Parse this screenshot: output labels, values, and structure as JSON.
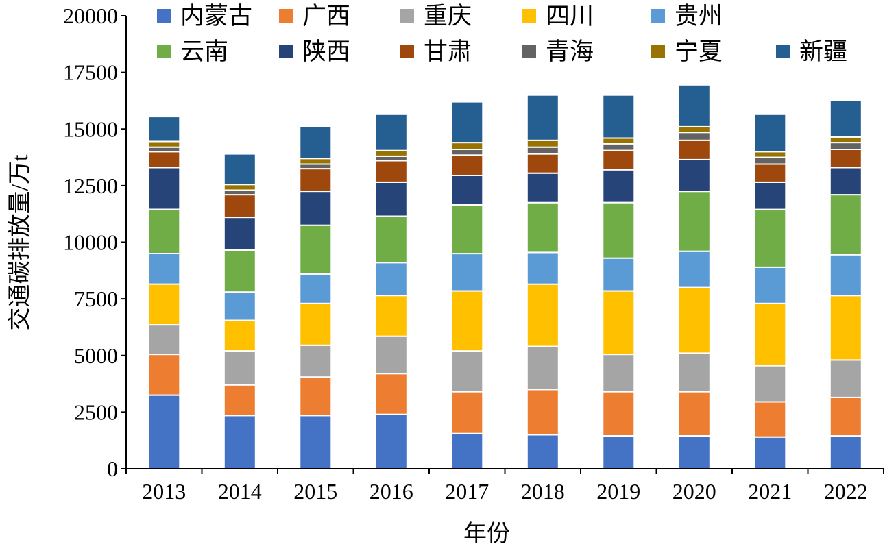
{
  "chart_data": {
    "type": "bar",
    "stacked": true,
    "title": "",
    "xlabel": "年份",
    "ylabel": "交通碳排放量/万t",
    "ylim": [
      0,
      20000
    ],
    "yticks": [
      0,
      2500,
      5000,
      7500,
      10000,
      12500,
      15000,
      17500,
      20000
    ],
    "grid": false,
    "legend_position": "top",
    "categories": [
      "2013",
      "2014",
      "2015",
      "2016",
      "2017",
      "2018",
      "2019",
      "2020",
      "2021",
      "2022"
    ],
    "series": [
      {
        "name": "内蒙古",
        "color": "#4472C4",
        "values": [
          3250,
          2350,
          2350,
          2400,
          1550,
          1500,
          1450,
          1450,
          1400,
          1450
        ]
      },
      {
        "name": "广西",
        "color": "#ED7D31",
        "values": [
          1800,
          1350,
          1700,
          1800,
          1850,
          2000,
          1950,
          1950,
          1550,
          1700
        ]
      },
      {
        "name": "重庆",
        "color": "#A5A5A5",
        "values": [
          1300,
          1500,
          1400,
          1650,
          1800,
          1900,
          1650,
          1700,
          1600,
          1650
        ]
      },
      {
        "name": "四川",
        "color": "#FFC000",
        "values": [
          1800,
          1350,
          1850,
          1800,
          2650,
          2750,
          2800,
          2900,
          2750,
          2850
        ]
      },
      {
        "name": "贵州",
        "color": "#5B9BD5",
        "values": [
          1350,
          1250,
          1300,
          1450,
          1650,
          1400,
          1450,
          1600,
          1600,
          1800
        ]
      },
      {
        "name": "云南",
        "color": "#70AD47",
        "values": [
          1950,
          1850,
          2150,
          2050,
          2150,
          2200,
          2450,
          2650,
          2550,
          2650
        ]
      },
      {
        "name": "陕西",
        "color": "#264478",
        "values": [
          1850,
          1450,
          1500,
          1500,
          1300,
          1300,
          1450,
          1400,
          1200,
          1200
        ]
      },
      {
        "name": "甘肃",
        "color": "#9E480E",
        "values": [
          700,
          1000,
          1000,
          950,
          900,
          850,
          850,
          850,
          800,
          800
        ]
      },
      {
        "name": "青海",
        "color": "#636363",
        "values": [
          200,
          200,
          200,
          200,
          250,
          300,
          300,
          350,
          300,
          300
        ]
      },
      {
        "name": "宁夏",
        "color": "#997300",
        "values": [
          250,
          250,
          250,
          250,
          300,
          300,
          250,
          250,
          250,
          250
        ]
      },
      {
        "name": "新疆",
        "color": "#255E91",
        "values": [
          1100,
          1350,
          1400,
          1600,
          1800,
          2000,
          1900,
          1850,
          1650,
          1600
        ]
      }
    ]
  }
}
